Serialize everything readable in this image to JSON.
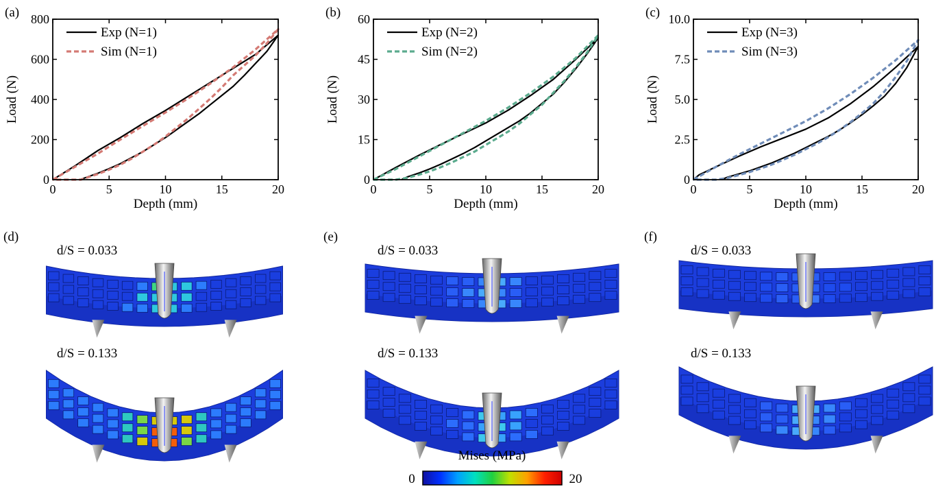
{
  "chart_data": [
    {
      "type": "line",
      "panel": "(a)",
      "xlabel": "Depth (mm)",
      "ylabel": "Load (N)",
      "xlim": [
        0,
        20
      ],
      "ylim": [
        0,
        800
      ],
      "xticks": [
        "0",
        "5",
        "10",
        "15",
        "20"
      ],
      "yticks": [
        "0",
        "200",
        "400",
        "600",
        "800"
      ],
      "legend_position": "top-left",
      "series": [
        {
          "name": "Exp (N=1)",
          "color": "#000000",
          "style": "solid",
          "points": [
            [
              0,
              0
            ],
            [
              2,
              70
            ],
            [
              4,
              145
            ],
            [
              6,
              210
            ],
            [
              8,
              280
            ],
            [
              10,
              345
            ],
            [
              12,
              415
            ],
            [
              14,
              485
            ],
            [
              16,
              555
            ],
            [
              18,
              625
            ],
            [
              20,
              720
            ],
            [
              19,
              640
            ],
            [
              18,
              580
            ],
            [
              17,
              520
            ],
            [
              16,
              465
            ],
            [
              15,
              420
            ],
            [
              14,
              375
            ],
            [
              13,
              330
            ],
            [
              12,
              290
            ],
            [
              11,
              250
            ],
            [
              10,
              210
            ],
            [
              9,
              175
            ],
            [
              8,
              140
            ],
            [
              7,
              110
            ],
            [
              6,
              80
            ],
            [
              5,
              55
            ],
            [
              4,
              32
            ],
            [
              3,
              12
            ],
            [
              2.4,
              0
            ]
          ]
        },
        {
          "name": "Sim (N=1)",
          "color": "#d47a74",
          "style": "dashed",
          "points": [
            [
              0,
              0
            ],
            [
              2,
              65
            ],
            [
              4,
              130
            ],
            [
              6,
              200
            ],
            [
              8,
              268
            ],
            [
              10,
              335
            ],
            [
              12,
              405
            ],
            [
              14,
              480
            ],
            [
              16,
              560
            ],
            [
              18,
              650
            ],
            [
              20,
              750
            ],
            [
              19,
              680
            ],
            [
              18,
              620
            ],
            [
              17,
              570
            ],
            [
              16,
              520
            ],
            [
              15,
              460
            ],
            [
              14,
              405
            ],
            [
              13,
              355
            ],
            [
              12,
              305
            ],
            [
              11,
              260
            ],
            [
              10,
              215
            ],
            [
              9,
              175
            ],
            [
              8,
              140
            ],
            [
              7,
              105
            ],
            [
              6,
              75
            ],
            [
              5,
              50
            ],
            [
              4,
              28
            ],
            [
              3,
              10
            ],
            [
              2.5,
              0
            ],
            [
              1,
              0
            ],
            [
              0,
              0
            ]
          ]
        }
      ]
    },
    {
      "type": "line",
      "panel": "(b)",
      "xlabel": "Depth (mm)",
      "ylabel": "Load (N)",
      "xlim": [
        0,
        20
      ],
      "ylim": [
        0,
        60
      ],
      "xticks": [
        "0",
        "5",
        "10",
        "15",
        "20"
      ],
      "yticks": [
        "0",
        "15",
        "30",
        "45",
        "60"
      ],
      "legend_position": "top-left",
      "series": [
        {
          "name": "Exp (N=2)",
          "color": "#000000",
          "style": "solid",
          "points": [
            [
              0,
              0
            ],
            [
              2,
              4.6
            ],
            [
              4,
              9
            ],
            [
              6,
              13.2
            ],
            [
              8,
              17.2
            ],
            [
              10,
              21.2
            ],
            [
              12,
              26
            ],
            [
              14,
              31.5
            ],
            [
              16,
              37.5
            ],
            [
              18,
              45
            ],
            [
              20,
              53
            ],
            [
              19,
              47
            ],
            [
              18,
              41.5
            ],
            [
              17,
              36.5
            ],
            [
              16,
              32
            ],
            [
              15,
              28.5
            ],
            [
              14,
              25
            ],
            [
              13,
              22
            ],
            [
              12,
              19.5
            ],
            [
              11,
              17
            ],
            [
              10,
              14.5
            ],
            [
              9,
              12
            ],
            [
              8,
              9.8
            ],
            [
              7,
              7.8
            ],
            [
              6,
              5.8
            ],
            [
              5,
              4
            ],
            [
              4,
              2.4
            ],
            [
              3,
              1
            ],
            [
              2.5,
              0
            ]
          ]
        },
        {
          "name": "Sim (N=2)",
          "color": "#5bab8e",
          "style": "dashed",
          "points": [
            [
              0,
              0
            ],
            [
              2,
              4
            ],
            [
              4,
              8.5
            ],
            [
              6,
              13
            ],
            [
              8,
              17.5
            ],
            [
              10,
              22
            ],
            [
              12,
              27
            ],
            [
              14,
              32.5
            ],
            [
              16,
              38.5
            ],
            [
              18,
              45.5
            ],
            [
              20,
              54
            ],
            [
              19,
              47.5
            ],
            [
              18,
              42
            ],
            [
              17,
              37
            ],
            [
              16,
              32.5
            ],
            [
              15,
              28
            ],
            [
              14,
              24.5
            ],
            [
              13,
              21
            ],
            [
              12,
              18
            ],
            [
              11,
              15.5
            ],
            [
              10,
              13
            ],
            [
              9,
              10.5
            ],
            [
              8,
              8.5
            ],
            [
              7,
              6.5
            ],
            [
              6,
              4.7
            ],
            [
              5,
              3.1
            ],
            [
              4,
              1.8
            ],
            [
              3,
              0.7
            ],
            [
              2,
              0
            ],
            [
              1,
              0
            ],
            [
              0,
              0
            ]
          ]
        }
      ]
    },
    {
      "type": "line",
      "panel": "(c)",
      "xlabel": "Depth (mm)",
      "ylabel": "Load (N)",
      "xlim": [
        0,
        20
      ],
      "ylim": [
        0,
        10
      ],
      "xticks": [
        "0",
        "5",
        "10",
        "15",
        "20"
      ],
      "yticks": [
        "0",
        "2.5",
        "5.0",
        "7.5",
        "10.0"
      ],
      "legend_position": "top-left",
      "series": [
        {
          "name": "Exp (N=3)",
          "color": "#000000",
          "style": "solid",
          "points": [
            [
              0,
              0
            ],
            [
              0.5,
              0.3
            ],
            [
              2,
              0.8
            ],
            [
              4,
              1.45
            ],
            [
              6,
              2.05
            ],
            [
              8,
              2.6
            ],
            [
              10,
              3.15
            ],
            [
              12,
              3.85
            ],
            [
              14,
              4.75
            ],
            [
              16,
              5.8
            ],
            [
              18,
              7
            ],
            [
              20,
              8.3
            ],
            [
              19,
              7
            ],
            [
              18,
              6
            ],
            [
              17,
              5.2
            ],
            [
              16,
              4.6
            ],
            [
              15,
              4.05
            ],
            [
              14,
              3.55
            ],
            [
              13,
              3.1
            ],
            [
              12,
              2.7
            ],
            [
              11,
              2.35
            ],
            [
              10,
              2
            ],
            [
              9,
              1.65
            ],
            [
              8,
              1.35
            ],
            [
              7,
              1.05
            ],
            [
              6,
              0.8
            ],
            [
              5,
              0.55
            ],
            [
              4,
              0.35
            ],
            [
              3,
              0.15
            ],
            [
              2.5,
              0
            ]
          ]
        },
        {
          "name": "Sim (N=3)",
          "color": "#6f8cb8",
          "style": "dashed",
          "points": [
            [
              0,
              0
            ],
            [
              2,
              0.8
            ],
            [
              4,
              1.55
            ],
            [
              6,
              2.25
            ],
            [
              8,
              2.95
            ],
            [
              10,
              3.65
            ],
            [
              12,
              4.45
            ],
            [
              14,
              5.35
            ],
            [
              16,
              6.35
            ],
            [
              18,
              7.45
            ],
            [
              20,
              8.7
            ],
            [
              19,
              7.4
            ],
            [
              18,
              6.4
            ],
            [
              17,
              5.5
            ],
            [
              16,
              4.75
            ],
            [
              15,
              4.15
            ],
            [
              14,
              3.6
            ],
            [
              13,
              3.1
            ],
            [
              12,
              2.65
            ],
            [
              11,
              2.25
            ],
            [
              10,
              1.9
            ],
            [
              9,
              1.55
            ],
            [
              8,
              1.25
            ],
            [
              7,
              0.95
            ],
            [
              6,
              0.7
            ],
            [
              5,
              0.48
            ],
            [
              4,
              0.28
            ],
            [
              3,
              0.1
            ],
            [
              2,
              0
            ],
            [
              1,
              0
            ],
            [
              0,
              0
            ]
          ]
        }
      ]
    }
  ],
  "simulations": {
    "panels": [
      {
        "label": "(d)",
        "ds_top": "d/S = 0.033",
        "ds_bottom": "d/S = 0.133",
        "stress_top": "medium",
        "stress_bottom": "high"
      },
      {
        "label": "(e)",
        "ds_top": "d/S = 0.033",
        "ds_bottom": "d/S = 0.133",
        "stress_top": "low",
        "stress_bottom": "medium-low"
      },
      {
        "label": "(f)",
        "ds_top": "d/S = 0.033",
        "ds_bottom": "d/S = 0.133",
        "stress_top": "very-low",
        "stress_bottom": "low"
      }
    ],
    "colorbar": {
      "title": "Mises (MPa)",
      "min_label": "0",
      "max_label": "20",
      "colors": [
        "#1010a0",
        "#0030ff",
        "#00a0ff",
        "#00e0c0",
        "#20d040",
        "#c0e000",
        "#ffa000",
        "#ff2000",
        "#d00000"
      ]
    }
  }
}
